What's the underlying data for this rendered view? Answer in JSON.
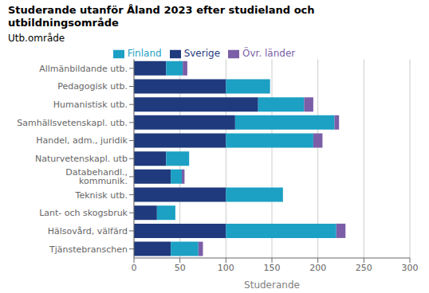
{
  "chart_data": {
    "type": "bar",
    "orientation": "horizontal",
    "stacked": true,
    "title": "Studerande utanför Åland 2023 efter studieland och\nutbildningsområde",
    "x_label": "Studerande",
    "y_label": "Utb.område",
    "categories": [
      "Allmänbildande utb.",
      "Pedagogisk utb.",
      "Humanistisk utb.",
      "Samhällsvetenskapl. utb.",
      "Handel, adm., juridik",
      "Naturvetenskapl. utb",
      "Databehandl., kommunik.",
      "Teknisk utb.",
      "Lant- och skogsbruk",
      "Hälsovård, välfärd",
      "Tjänstebranschen"
    ],
    "series": [
      {
        "name": "Sverige",
        "color": "#1f3a7d",
        "values": [
          35,
          100,
          135,
          110,
          100,
          35,
          40,
          100,
          25,
          100,
          40
        ]
      },
      {
        "name": "Finland",
        "color": "#1ca0c4",
        "values": [
          18,
          48,
          50,
          108,
          95,
          25,
          12,
          62,
          20,
          120,
          30
        ]
      },
      {
        "name": "Övr. länder",
        "color": "#7b5ea7",
        "values": [
          5,
          0,
          10,
          5,
          10,
          0,
          3,
          0,
          0,
          10,
          5
        ]
      }
    ],
    "xlim": [
      0,
      300
    ],
    "xticks": [
      0,
      50,
      100,
      150,
      200,
      250,
      300
    ],
    "grid": true,
    "legend": "top"
  }
}
